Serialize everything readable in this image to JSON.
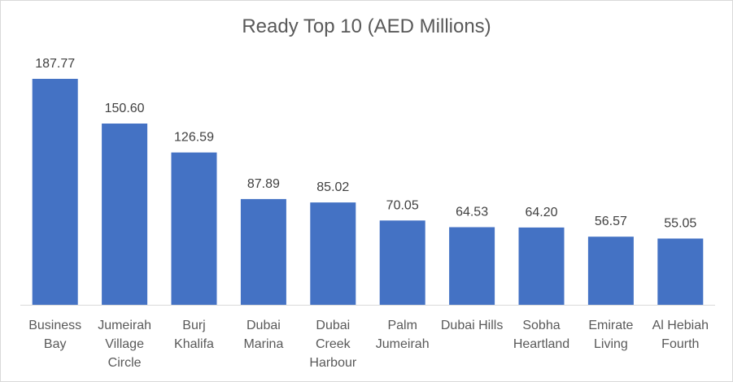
{
  "chart_data": {
    "type": "bar",
    "title": "Ready Top 10 (AED Millions)",
    "xlabel": "",
    "ylabel": "",
    "categories": [
      [
        "Business",
        "Bay"
      ],
      [
        "Jumeirah",
        "Village",
        "Circle"
      ],
      [
        "Burj",
        "Khalifa"
      ],
      [
        "Dubai",
        "Marina"
      ],
      [
        "Dubai",
        "Creek",
        "Harbour"
      ],
      [
        "Palm",
        "Jumeirah"
      ],
      [
        "Dubai Hills"
      ],
      [
        "Sobha",
        "Heartland"
      ],
      [
        "Emirate",
        "Living"
      ],
      [
        "Al Hebiah",
        "Fourth"
      ]
    ],
    "values": [
      187.77,
      150.6,
      126.59,
      87.89,
      85.02,
      70.05,
      64.53,
      64.2,
      56.57,
      55.05
    ],
    "value_labels": [
      "187.77",
      "150.60",
      "126.59",
      "87.89",
      "85.02",
      "70.05",
      "64.53",
      "64.20",
      "56.57",
      "55.05"
    ],
    "ylim": [
      0,
      187.77
    ],
    "grid": false,
    "legend": "none",
    "colors": {
      "bar": "#4472c4",
      "axis": "#d9d9d9",
      "title": "#595959",
      "labels": "#404040"
    }
  }
}
